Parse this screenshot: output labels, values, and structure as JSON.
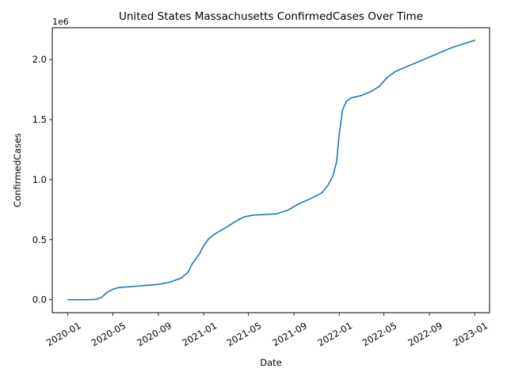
{
  "chart_data": {
    "type": "line",
    "title": "United States Massachusetts ConfirmedCases Over Time",
    "xlabel": "Date",
    "ylabel": "ConfirmedCases",
    "y_offset_label": "1e6",
    "x_domain": [
      "2019-11-20",
      "2023-02-10"
    ],
    "ylim": [
      -0.108,
      2.265
    ],
    "x_ticks": [
      {
        "date": "2020-01-01",
        "label": "2020-01"
      },
      {
        "date": "2020-05-01",
        "label": "2020-05"
      },
      {
        "date": "2020-09-01",
        "label": "2020-09"
      },
      {
        "date": "2021-01-01",
        "label": "2021-01"
      },
      {
        "date": "2021-05-01",
        "label": "2021-05"
      },
      {
        "date": "2021-09-01",
        "label": "2021-09"
      },
      {
        "date": "2022-01-01",
        "label": "2022-01"
      },
      {
        "date": "2022-05-01",
        "label": "2022-05"
      },
      {
        "date": "2022-09-01",
        "label": "2022-09"
      },
      {
        "date": "2023-01-01",
        "label": "2023-01"
      }
    ],
    "y_ticks": [
      {
        "value": 0.0,
        "label": "0.0"
      },
      {
        "value": 0.5,
        "label": "0.5"
      },
      {
        "value": 1.0,
        "label": "1.0"
      },
      {
        "value": 1.5,
        "label": "1.5"
      },
      {
        "value": 2.0,
        "label": "2.0"
      }
    ],
    "grid": false,
    "series": [
      {
        "color": "#1f77b4",
        "x": [
          "2020-01-01",
          "2020-02-15",
          "2020-03-15",
          "2020-04-01",
          "2020-04-15",
          "2020-05-01",
          "2020-05-15",
          "2020-06-01",
          "2020-07-01",
          "2020-08-01",
          "2020-09-01",
          "2020-10-01",
          "2020-11-01",
          "2020-11-20",
          "2020-12-01",
          "2020-12-20",
          "2021-01-01",
          "2021-01-15",
          "2021-02-01",
          "2021-03-01",
          "2021-04-01",
          "2021-04-20",
          "2021-05-15",
          "2021-06-15",
          "2021-07-15",
          "2021-08-15",
          "2021-09-15",
          "2021-10-15",
          "2021-11-15",
          "2021-12-01",
          "2021-12-15",
          "2021-12-25",
          "2022-01-01",
          "2022-01-10",
          "2022-01-20",
          "2022-02-01",
          "2022-03-01",
          "2022-04-01",
          "2022-04-20",
          "2022-05-10",
          "2022-06-01",
          "2022-07-01",
          "2022-08-01",
          "2022-09-01",
          "2022-10-01",
          "2022-11-01",
          "2022-12-01",
          "2023-01-01"
        ],
        "values": [
          0.0,
          0.0,
          0.002,
          0.02,
          0.06,
          0.087,
          0.1,
          0.105,
          0.112,
          0.12,
          0.128,
          0.145,
          0.18,
          0.23,
          0.3,
          0.38,
          0.45,
          0.51,
          0.55,
          0.6,
          0.66,
          0.69,
          0.705,
          0.71,
          0.715,
          0.745,
          0.8,
          0.84,
          0.89,
          0.95,
          1.03,
          1.15,
          1.38,
          1.58,
          1.65,
          1.68,
          1.7,
          1.74,
          1.78,
          1.85,
          1.9,
          1.94,
          1.98,
          2.02,
          2.06,
          2.1,
          2.13,
          2.16
        ]
      }
    ]
  }
}
